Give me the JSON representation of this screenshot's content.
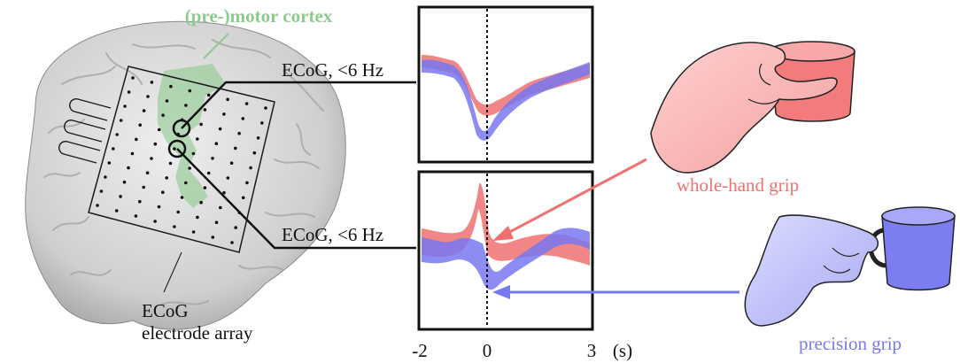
{
  "labels": {
    "motor_cortex": "(pre-)motor cortex",
    "ecog_top": "ECoG, <6 Hz",
    "ecog_bottom": "ECoG, <6 Hz",
    "array_line1": "ECoG",
    "array_line2": "electrode array",
    "whole_hand": "whole-hand grip",
    "precision": "precision grip"
  },
  "axis": {
    "ticks": [
      "-2",
      "0",
      "3"
    ],
    "unit": "(s)"
  },
  "colors": {
    "whole_hand": "#f07070",
    "precision": "#7878f0",
    "motor": "#8ec98e",
    "cup_red": "#f27c7c",
    "cup_blue": "#7d7df2"
  },
  "icons": [
    "brain-image",
    "electrode-grid",
    "hand-whole-grip",
    "hand-precision-grip"
  ]
}
